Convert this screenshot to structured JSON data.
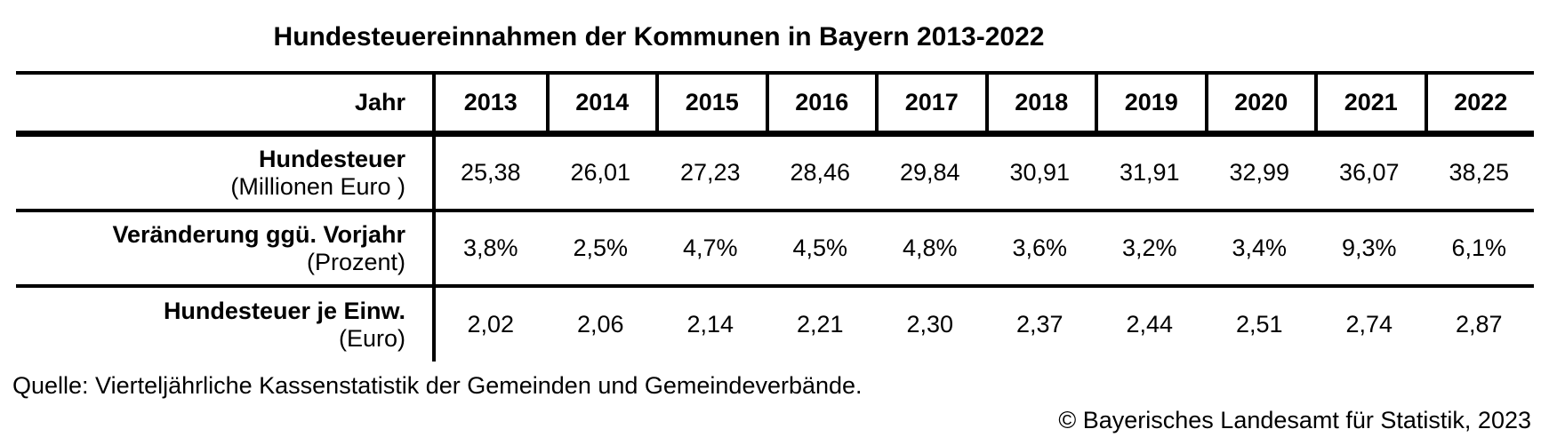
{
  "title": "Hundesteuereinnahmen der Kommunen in Bayern 2013-2022",
  "table": {
    "corner_label": "Jahr",
    "years": [
      "2013",
      "2014",
      "2015",
      "2016",
      "2017",
      "2018",
      "2019",
      "2020",
      "2021",
      "2022"
    ],
    "rows": [
      {
        "label": "Hundesteuer",
        "unit": "(Millionen Euro )",
        "values": [
          "25,38",
          "26,01",
          "27,23",
          "28,46",
          "29,84",
          "30,91",
          "31,91",
          "32,99",
          "36,07",
          "38,25"
        ]
      },
      {
        "label": "Veränderung ggü. Vorjahr",
        "unit": "(Prozent)",
        "values": [
          "3,8%",
          "2,5%",
          "4,7%",
          "4,5%",
          "4,8%",
          "3,6%",
          "3,2%",
          "3,4%",
          "9,3%",
          "6,1%"
        ]
      },
      {
        "label": "Hundesteuer je Einw.",
        "unit": "(Euro)",
        "values": [
          "2,02",
          "2,06",
          "2,14",
          "2,21",
          "2,30",
          "2,37",
          "2,44",
          "2,51",
          "2,74",
          "2,87"
        ]
      }
    ]
  },
  "footer": {
    "source": "Quelle: Vierteljährliche Kassenstatistik der Gemeinden und Gemeindeverbände.",
    "copyright": "© Bayerisches Landesamt für Statistik, 2023"
  },
  "colors": {
    "text": "#000000",
    "background": "#ffffff",
    "rule": "#000000"
  },
  "chart_data": {
    "type": "table",
    "title": "Hundesteuereinnahmen der Kommunen in Bayern 2013-2022",
    "categories": [
      "2013",
      "2014",
      "2015",
      "2016",
      "2017",
      "2018",
      "2019",
      "2020",
      "2021",
      "2022"
    ],
    "series": [
      {
        "name": "Hundesteuer (Millionen Euro)",
        "values": [
          25.38,
          26.01,
          27.23,
          28.46,
          29.84,
          30.91,
          31.91,
          32.99,
          36.07,
          38.25
        ]
      },
      {
        "name": "Veränderung ggü. Vorjahr (Prozent)",
        "values": [
          3.8,
          2.5,
          4.7,
          4.5,
          4.8,
          3.6,
          3.2,
          3.4,
          9.3,
          6.1
        ]
      },
      {
        "name": "Hundesteuer je Einw. (Euro)",
        "values": [
          2.02,
          2.06,
          2.14,
          2.21,
          2.3,
          2.37,
          2.44,
          2.51,
          2.74,
          2.87
        ]
      }
    ],
    "source": "Quelle: Vierteljährliche Kassenstatistik der Gemeinden und Gemeindeverbände.",
    "copyright": "© Bayerisches Landesamt für Statistik, 2023"
  }
}
